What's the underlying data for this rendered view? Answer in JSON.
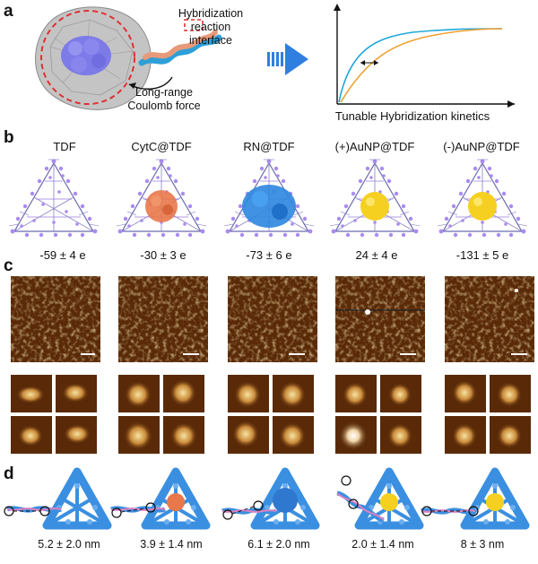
{
  "panels": [
    "a",
    "b",
    "c",
    "d"
  ],
  "panel_a": {
    "annotation_interface": "Hybridization reaction\ninterface",
    "annotation_force": "Long-range\nCoulomb force",
    "chart_caption": "Tunable Hybridization kinetics",
    "curve_colors": [
      "#1ea7d6",
      "#f0a030"
    ]
  },
  "structures": [
    {
      "label": "TDF",
      "charge": "-59 ± 4 e",
      "core": "none",
      "distance": "5.2 ± 2.0 nm"
    },
    {
      "label": "CytC@TDF",
      "charge": "-30 ± 3 e",
      "core": "#e8784a",
      "distance": "3.9 ± 1.4 nm"
    },
    {
      "label": "RN@TDF",
      "charge": "-73 ± 6 e",
      "core": "#2e86e0",
      "distance": "6.1 ± 2.0 nm"
    },
    {
      "label": "(+)AuNP@TDF",
      "charge": "24 ± 4 e",
      "core": "#f5d020",
      "distance": "2.0 ± 1.4 nm"
    },
    {
      "label": "(-)AuNP@TDF",
      "charge": "-131 ± 5 e",
      "core": "#f5d020",
      "distance": "8 ± 3 nm"
    }
  ],
  "colors": {
    "dna_purple": "#9b7fe0",
    "protein_gray": "#b8b8b8",
    "afm_dark": "#5a2a08",
    "afm_light": "#f3d98a",
    "arrow_blue": "#2f7fe0",
    "dashed_red": "#e03030",
    "mesh_blue": "#3b8fe0",
    "strand_pink": "#e080c0"
  }
}
